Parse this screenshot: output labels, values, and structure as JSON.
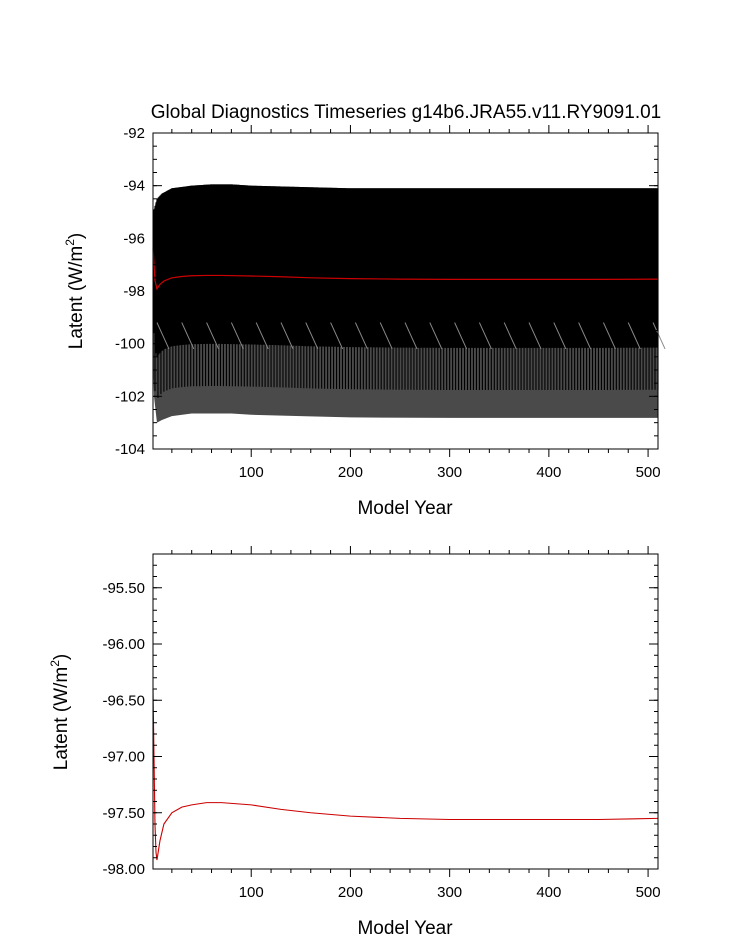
{
  "colors": {
    "background": "#ffffff",
    "axes": "#000000",
    "monthly_band": "#4a4a4a",
    "monthly_lines": "#000000",
    "annual_mean": "#cc0000"
  },
  "chart_data": [
    {
      "type": "line",
      "title": "Global Diagnostics Timeseries g14b6.JRA55.v11.RY9091.01",
      "xlabel": "Model Year",
      "ylabel_main": "Latent (W/m",
      "ylabel_sup": "2",
      "ylabel_close": ")",
      "xlim": [
        1,
        510
      ],
      "ylim": [
        -104,
        -92
      ],
      "xticks": [
        100,
        200,
        300,
        400,
        500
      ],
      "xtick_labels": [
        "100",
        "200",
        "300",
        "400",
        "500"
      ],
      "yticks": [
        -104,
        -102,
        -100,
        -98,
        -96,
        -94,
        -92
      ],
      "ytick_labels": [
        "-104",
        "-102",
        "-100",
        "-98",
        "-96",
        "-94",
        "-92"
      ],
      "grid": false,
      "series": [
        {
          "name": "monthly maximum envelope",
          "x": [
            1,
            2,
            5,
            10,
            20,
            40,
            60,
            80,
            100,
            150,
            200,
            300,
            400,
            510
          ],
          "values": [
            -95.2,
            -94.9,
            -94.5,
            -94.3,
            -94.1,
            -94.0,
            -93.95,
            -93.95,
            -94.0,
            -94.05,
            -94.1,
            -94.1,
            -94.1,
            -94.1
          ]
        },
        {
          "name": "monthly minimum envelope",
          "x": [
            1,
            2,
            5,
            10,
            20,
            40,
            60,
            80,
            100,
            150,
            200,
            300,
            400,
            510
          ],
          "values": [
            -100.5,
            -102.0,
            -103.0,
            -102.9,
            -102.75,
            -102.65,
            -102.65,
            -102.65,
            -102.7,
            -102.75,
            -102.8,
            -102.82,
            -102.82,
            -102.82
          ]
        },
        {
          "name": "annual mean",
          "x": [
            1,
            2,
            3,
            5,
            8,
            12,
            20,
            30,
            40,
            55,
            70,
            100,
            130,
            160,
            200,
            250,
            300,
            350,
            400,
            450,
            510
          ],
          "values": [
            -96.4,
            -97.0,
            -97.6,
            -97.92,
            -97.75,
            -97.62,
            -97.5,
            -97.45,
            -97.42,
            -97.41,
            -97.41,
            -97.43,
            -97.46,
            -97.5,
            -97.53,
            -97.55,
            -97.56,
            -97.56,
            -97.56,
            -97.56,
            -97.55
          ]
        }
      ]
    },
    {
      "type": "line",
      "title": "",
      "xlabel": "Model Year",
      "ylabel_main": "Latent (W/m",
      "ylabel_sup": "2",
      "ylabel_close": ")",
      "xlim": [
        1,
        510
      ],
      "ylim": [
        -98.0,
        -95.2
      ],
      "xticks": [
        100,
        200,
        300,
        400,
        500
      ],
      "xtick_labels": [
        "100",
        "200",
        "300",
        "400",
        "500"
      ],
      "yticks": [
        -98.0,
        -97.5,
        -97.0,
        -96.5,
        -96.0,
        -95.5
      ],
      "ytick_labels": [
        "-98.00",
        "-97.50",
        "-97.00",
        "-96.50",
        "-96.00",
        "-95.50"
      ],
      "grid": false,
      "series": [
        {
          "name": "annual mean",
          "x": [
            1,
            2,
            3,
            4,
            5,
            8,
            12,
            20,
            30,
            40,
            55,
            70,
            100,
            130,
            160,
            200,
            250,
            300,
            350,
            400,
            450,
            510
          ],
          "values": [
            -96.4,
            -97.0,
            -97.6,
            -97.85,
            -97.92,
            -97.75,
            -97.6,
            -97.5,
            -97.45,
            -97.43,
            -97.41,
            -97.41,
            -97.43,
            -97.47,
            -97.5,
            -97.53,
            -97.55,
            -97.56,
            -97.56,
            -97.56,
            -97.56,
            -97.55
          ]
        }
      ]
    }
  ]
}
